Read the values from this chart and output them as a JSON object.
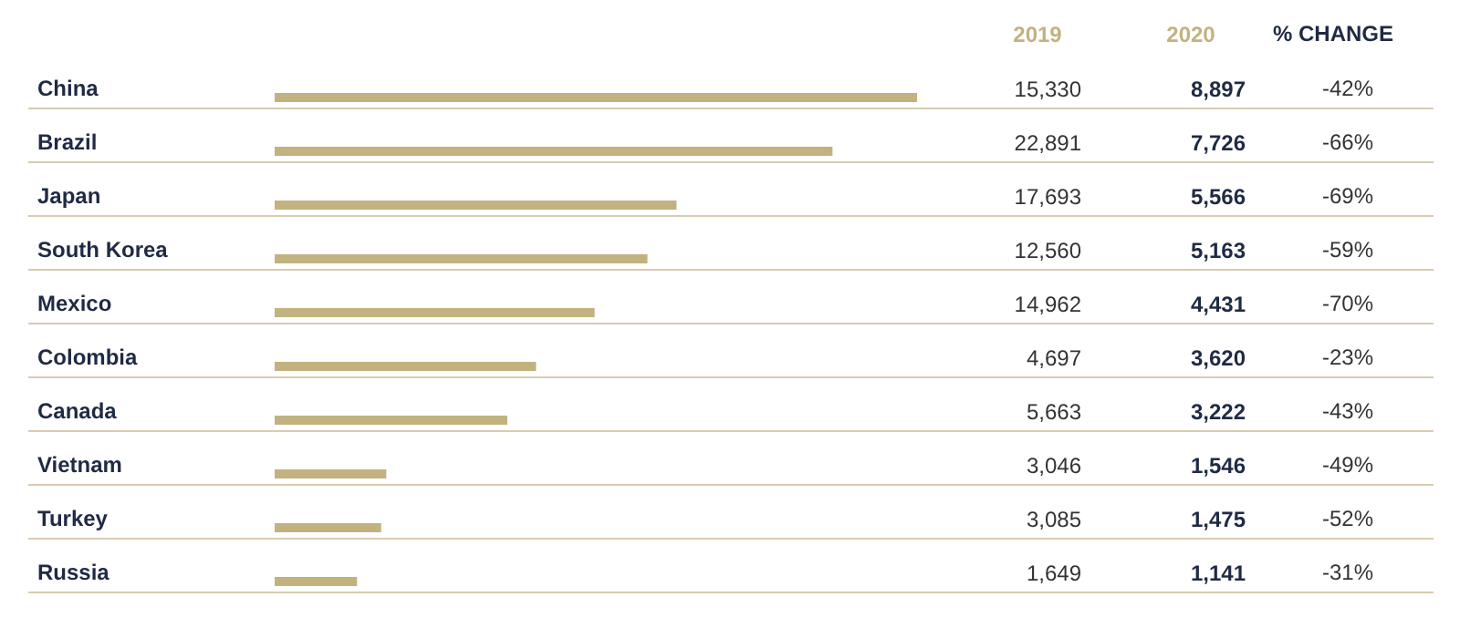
{
  "chart_data": {
    "type": "bar",
    "orientation": "horizontal",
    "grid": false,
    "categories": [
      "China",
      "Brazil",
      "Japan",
      "South Korea",
      "Mexico",
      "Colombia",
      "Canada",
      "Vietnam",
      "Turkey",
      "Russia"
    ],
    "series": [
      {
        "name": "2020",
        "color": "#c2b280",
        "values": [
          8897,
          7726,
          5566,
          5163,
          4431,
          3620,
          3222,
          1546,
          1475,
          1141
        ],
        "value_labels": [
          "8,897",
          "7,726",
          "5,566",
          "5,163",
          "4,431",
          "3,620",
          "3,222",
          "1,546",
          "1,475",
          "1,141"
        ]
      }
    ],
    "annotations": [
      "2019",
      "15,330",
      "22,891",
      "17,693",
      "12,560",
      "14,962",
      "4,697",
      "5,663",
      "3,046",
      "3,085",
      "1,649",
      "% CHANGE",
      "-42%",
      "-66%",
      "-69%",
      "-59%",
      "-70%",
      "-23%",
      "-43%",
      "-49%",
      "-52%",
      "-31%"
    ]
  }
}
